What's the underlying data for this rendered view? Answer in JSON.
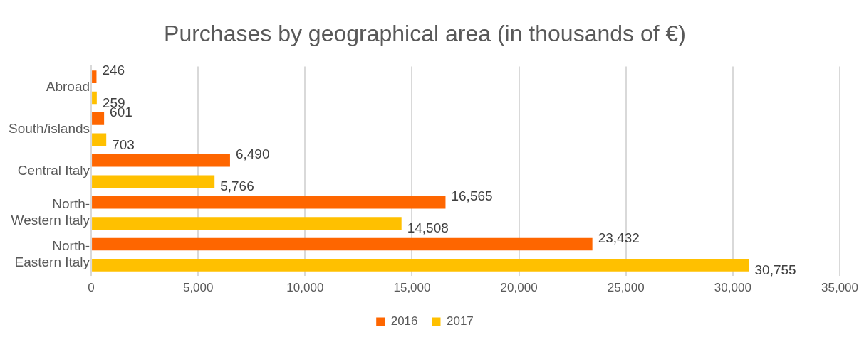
{
  "chart_data": {
    "type": "bar",
    "orientation": "horizontal",
    "title": "Purchases by geographical area (in thousands of €)",
    "categories": [
      "Abroad",
      "South/islands",
      "Central Italy",
      "North-Western Italy",
      "North-Eastern Italy"
    ],
    "series": [
      {
        "name": "2016",
        "color": "#fe6600",
        "values": [
          246,
          601,
          6490,
          16565,
          23432
        ],
        "value_labels": [
          "246",
          "601",
          "6,490",
          "16,565",
          "23,432"
        ]
      },
      {
        "name": "2017",
        "color": "#ffc000",
        "values": [
          259,
          703,
          5766,
          14508,
          30755
        ],
        "value_labels": [
          "259",
          "703",
          "5,766",
          "14,508",
          "30,755"
        ]
      }
    ],
    "xlim": [
      0,
      35000
    ],
    "xticks": [
      0,
      {
        "value": 5000,
        "label": "5,000"
      },
      {
        "value": 10000,
        "label": "10,000"
      },
      {
        "value": 15000,
        "label": "15,000"
      },
      {
        "value": 20000,
        "label": "20,000"
      },
      {
        "value": 25000,
        "label": "25,000"
      },
      {
        "value": 30000,
        "label": "30,000"
      },
      {
        "value": 35000,
        "label": "35,000"
      }
    ],
    "grid": "x",
    "legend": "bottom"
  }
}
